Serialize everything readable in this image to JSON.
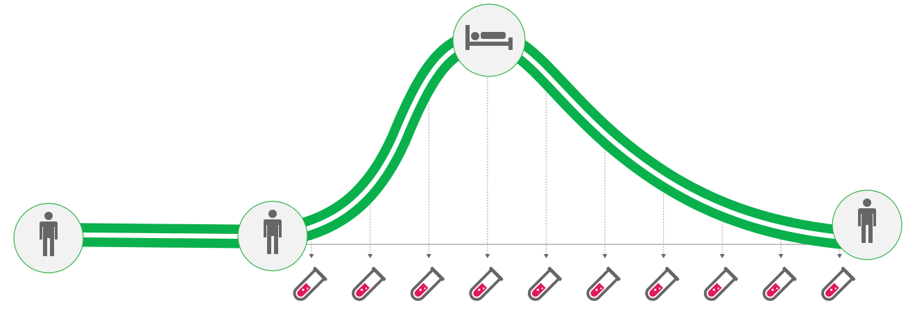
{
  "colors": {
    "curve": "#0ab04b",
    "curve_gap": "#ffffff",
    "node_fill": "#f2f2f2",
    "node_stroke": "#2fb34a",
    "icon": "#666666",
    "tube_outline": "#666666",
    "tube_liquid": "#e0195a",
    "dotted_line": "#9a9a9a"
  },
  "nodes": [
    {
      "id": "healthy-start",
      "icon": "person-standing-icon"
    },
    {
      "id": "onset",
      "icon": "person-standing-icon"
    },
    {
      "id": "peak",
      "icon": "person-in-bed-icon"
    },
    {
      "id": "recovered",
      "icon": "person-standing-icon"
    }
  ],
  "sample_points": {
    "count": 10,
    "icon": "test-tube-icon"
  }
}
